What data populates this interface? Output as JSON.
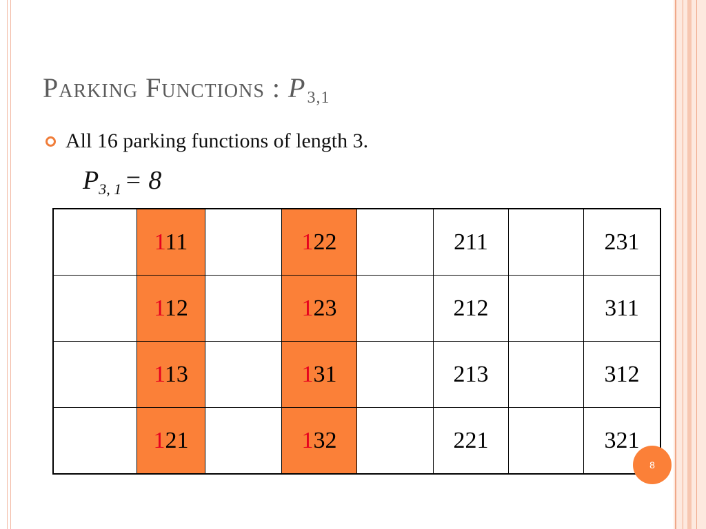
{
  "title": {
    "main": "Parking Functions : ",
    "variable": "P",
    "subscript": "3,1"
  },
  "bullet": {
    "text": "All 16 parking functions of length 3."
  },
  "formula": {
    "variable": "P",
    "subscript": "3, 1",
    "equals": "= 8"
  },
  "table": {
    "columns": 8,
    "highlight_color": "#fb8038",
    "first_digit_color": "#e6001e",
    "rows": [
      [
        "",
        "111",
        "",
        "122",
        "",
        "211",
        "",
        "231"
      ],
      [
        "",
        "112",
        "",
        "123",
        "",
        "212",
        "",
        "311"
      ],
      [
        "",
        "113",
        "",
        "131",
        "",
        "213",
        "",
        "312"
      ],
      [
        "",
        "121",
        "",
        "132",
        "",
        "221",
        "",
        "321"
      ]
    ],
    "highlighted_columns": [
      1,
      3
    ],
    "red_first_digit_columns": [
      1,
      3
    ]
  },
  "page_number": "8",
  "colors": {
    "accent": "#fb8038",
    "title": "#5b5b5b",
    "bullet": "#f07d3a",
    "border": "#f0a889"
  }
}
